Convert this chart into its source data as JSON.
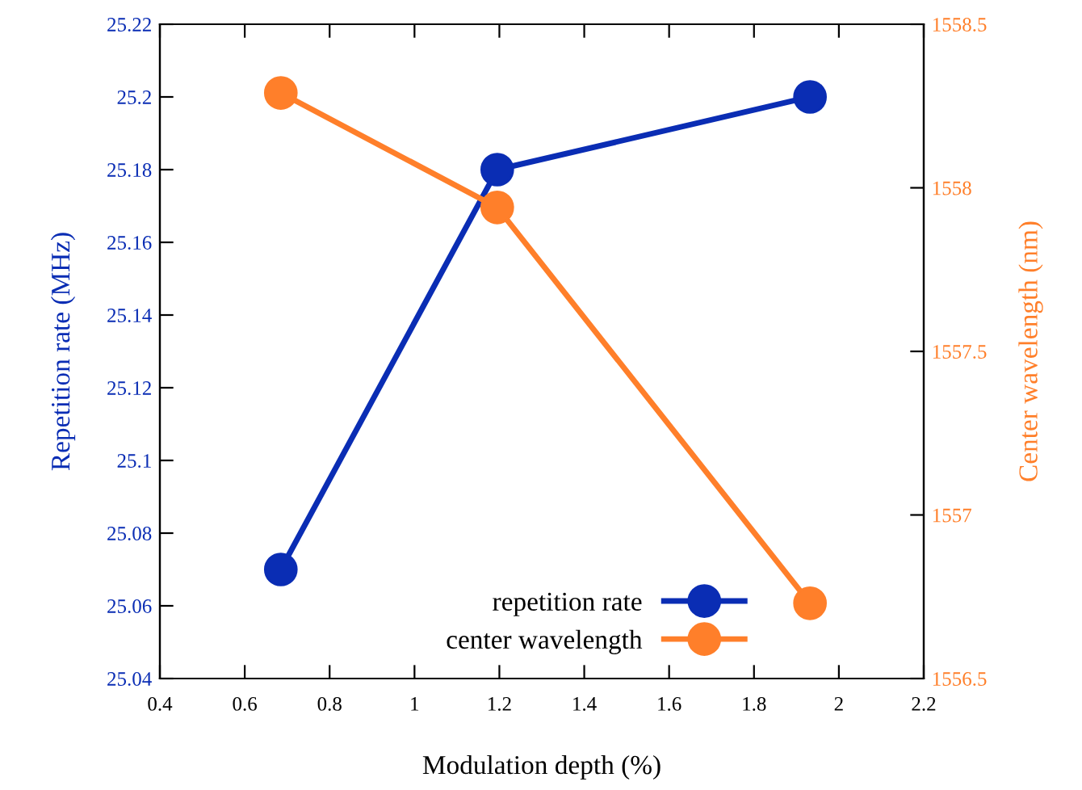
{
  "chart_data": {
    "type": "line",
    "xlabel": "Modulation depth (%)",
    "ylabel": "Repetition rate (MHz)",
    "y2label": "Center wavelength (nm)",
    "x": [
      0.685,
      1.195,
      1.932
    ],
    "series": [
      {
        "name": "repetition rate",
        "color": "#0a2db4",
        "values": [
          25.07,
          25.18,
          25.2
        ]
      },
      {
        "name": "center wavelength",
        "color": "#ff7f2a",
        "values": [
          1558.29,
          1557.94,
          1556.73
        ],
        "axis": "y2"
      }
    ],
    "xlim": [
      0.4,
      2.2
    ],
    "xticks": [
      0.4,
      0.6,
      0.8,
      1,
      1.2,
      1.4,
      1.6,
      1.8,
      2,
      2.2
    ],
    "ylim": [
      25.04,
      25.22
    ],
    "yticks": [
      25.04,
      25.06,
      25.08,
      25.1,
      25.12,
      25.14,
      25.16,
      25.18,
      25.2,
      25.22
    ],
    "y2lim": [
      1556.5,
      1558.5
    ],
    "y2ticks": [
      1556.5,
      1557,
      1557.5,
      1558,
      1558.5
    ],
    "marker": "circle",
    "line_style": "solid",
    "grid": false,
    "legend": "bottom"
  }
}
